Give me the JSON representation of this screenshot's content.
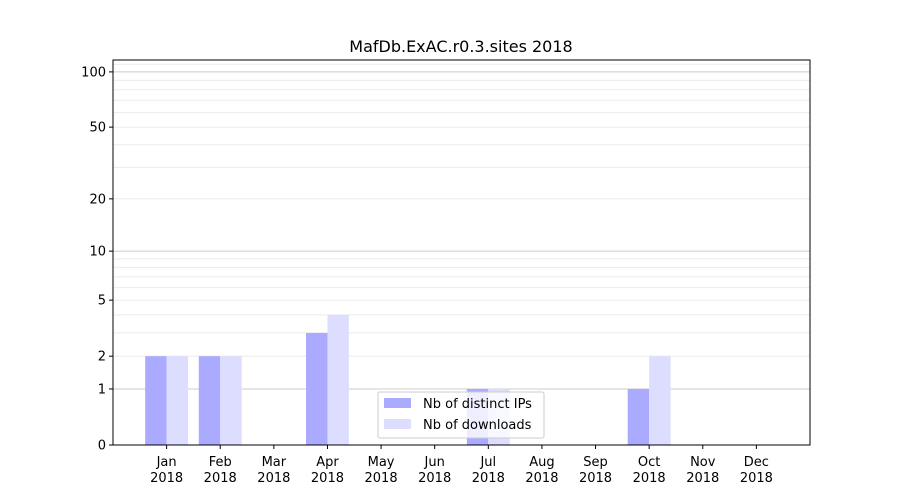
{
  "chart_data": {
    "type": "bar",
    "title": "MafDb.ExAC.r0.3.sites 2018",
    "xlabel": "",
    "ylabel": "",
    "yscale": "log(1+y)",
    "ylim": [
      0,
      116
    ],
    "yticks": [
      0,
      1,
      2,
      5,
      10,
      20,
      50,
      100
    ],
    "grid": true,
    "legend": "lower-center",
    "categories": [
      "Jan\n2018",
      "Feb\n2018",
      "Mar\n2018",
      "Apr\n2018",
      "May\n2018",
      "Jun\n2018",
      "Jul\n2018",
      "Aug\n2018",
      "Sep\n2018",
      "Oct\n2018",
      "Nov\n2018",
      "Dec\n2018"
    ],
    "series": [
      {
        "name": "Nb of distinct IPs",
        "color": "#aaaaff",
        "values": [
          2,
          2,
          0,
          3,
          0,
          0,
          1,
          0,
          0,
          1,
          0,
          0
        ]
      },
      {
        "name": "Nb of downloads",
        "color": "#ddddff",
        "values": [
          2,
          2,
          0,
          4,
          0,
          0,
          1,
          0,
          0,
          2,
          0,
          0
        ]
      }
    ]
  }
}
